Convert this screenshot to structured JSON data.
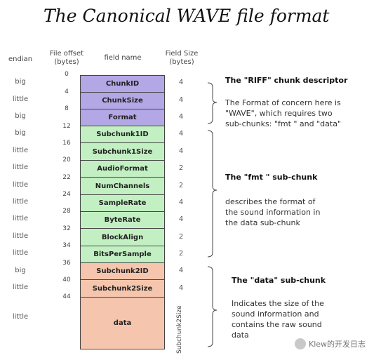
{
  "title": "The Canonical WAVE file format",
  "headers": {
    "endian": "endian",
    "offset_line1": "File offset",
    "offset_line2": "(bytes)",
    "field_name": "field name",
    "size_line1": "Field Size",
    "size_line2": "(bytes)"
  },
  "offsets": [
    "0",
    "4",
    "8",
    "12",
    "16",
    "20",
    "22",
    "24",
    "28",
    "32",
    "34",
    "36",
    "40",
    "44"
  ],
  "fields": [
    {
      "name": "ChunkID",
      "endian": "big",
      "size": "4",
      "group": "riff"
    },
    {
      "name": "ChunkSize",
      "endian": "little",
      "size": "4",
      "group": "riff"
    },
    {
      "name": "Format",
      "endian": "big",
      "size": "4",
      "group": "riff"
    },
    {
      "name": "Subchunk1ID",
      "endian": "big",
      "size": "4",
      "group": "fmt"
    },
    {
      "name": "Subchunk1Size",
      "endian": "little",
      "size": "4",
      "group": "fmt"
    },
    {
      "name": "AudioFormat",
      "endian": "little",
      "size": "2",
      "group": "fmt"
    },
    {
      "name": "NumChannels",
      "endian": "little",
      "size": "2",
      "group": "fmt"
    },
    {
      "name": "SampleRate",
      "endian": "little",
      "size": "4",
      "group": "fmt"
    },
    {
      "name": "ByteRate",
      "endian": "little",
      "size": "4",
      "group": "fmt"
    },
    {
      "name": "BlockAlign",
      "endian": "little",
      "size": "2",
      "group": "fmt"
    },
    {
      "name": "BitsPerSample",
      "endian": "little",
      "size": "2",
      "group": "fmt"
    },
    {
      "name": "Subchunk2ID",
      "endian": "big",
      "size": "4",
      "group": "data"
    },
    {
      "name": "Subchunk2Size",
      "endian": "little",
      "size": "4",
      "group": "data"
    },
    {
      "name": "data",
      "endian": "little",
      "size": "Subchunk2Size",
      "group": "data"
    }
  ],
  "sections": {
    "riff": {
      "title": "The \"RIFF\" chunk descriptor",
      "desc": [
        "The Format of concern here is",
        "\"WAVE\", which requires two",
        "sub-chunks: \"fmt \" and \"data\""
      ]
    },
    "fmt": {
      "title": "The \"fmt \" sub-chunk",
      "desc": [
        "describes the format of",
        "the sound information in",
        "the data sub-chunk"
      ]
    },
    "data": {
      "title": "The \"data\" sub-chunk",
      "desc": [
        "Indicates the size of the",
        "sound information and",
        "contains the raw sound",
        "data"
      ]
    }
  },
  "colors": {
    "riff": "#b4a7e6",
    "fmt": "#c3f0c3",
    "data": "#f5c6ad"
  },
  "watermark": {
    "text": "Klew的开发日志",
    "icon": "wechat-icon"
  }
}
